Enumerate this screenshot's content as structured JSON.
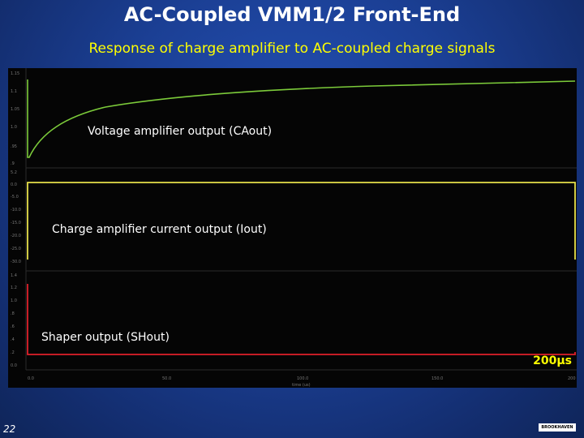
{
  "slide": {
    "title": "AC-Coupled VMM1/2 Front-End",
    "subtitle": "Response of charge amplifier to AC-coupled charge signals",
    "page_number": "22",
    "logo_text": "BROOKHAVEN"
  },
  "scope": {
    "traces": [
      {
        "label": "Voltage amplifier output (CAout)",
        "color": "#7ccb3a"
      },
      {
        "label": "Charge amplifier current output (Iout)",
        "color": "#e6e04a"
      },
      {
        "label": "Shaper output (SHout)",
        "color": "#e0202a"
      }
    ],
    "time_scale_label": "200μs",
    "x_tick_labels": [
      "0.0",
      "50.0",
      "100.0",
      "150.0",
      "200"
    ],
    "x_axis_title": "time (us)",
    "panel1_ticks": [
      "1.15",
      "1.1",
      "1.05",
      "1.0",
      ".95",
      ".9"
    ],
    "panel2_ticks": [
      "5.2",
      "0.0",
      "-5.0",
      "-10.0",
      "-15.0",
      "-20.0",
      "-25.0",
      "-30.0"
    ],
    "panel3_ticks": [
      "1.4",
      "1.2",
      "1.0",
      ".8",
      ".6",
      ".4",
      ".2",
      "0.0"
    ]
  }
}
